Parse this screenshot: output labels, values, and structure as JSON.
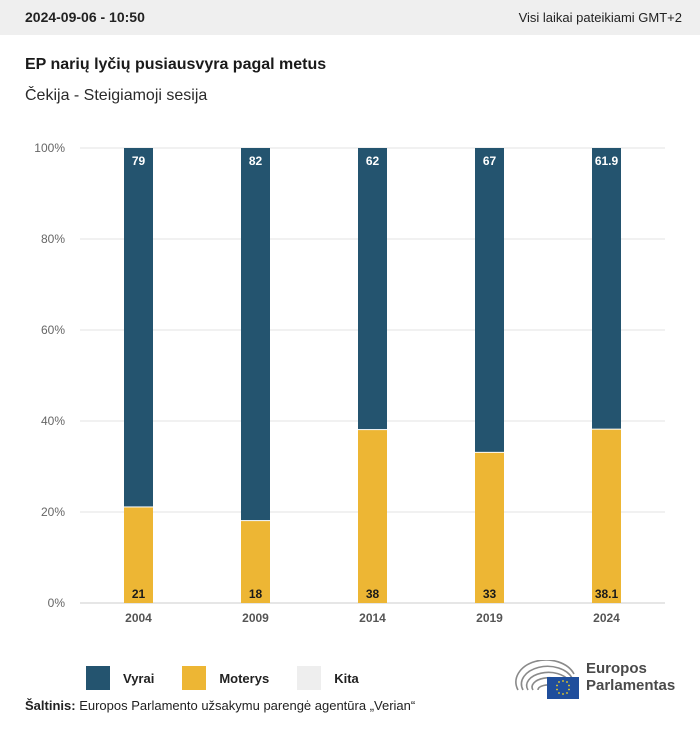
{
  "header": {
    "datetime": "2024-09-06 - 10:50",
    "timezone_note": "Visi laikai pateikiami GMT+2"
  },
  "title": "EP narių lyčių pusiausvyra pagal metus",
  "subtitle": "Čekija - Steigiamoji sesija",
  "colors": {
    "men": "#24546F",
    "women": "#EDB634",
    "other": "#EEEEEE",
    "grid": "#e3e3e3"
  },
  "chart_data": {
    "type": "bar",
    "stacked": true,
    "title": "EP narių lyčių pusiausvyra pagal metus",
    "subtitle": "Čekija - Steigiamoji sesija",
    "xlabel": "",
    "ylabel": "",
    "categories": [
      "2004",
      "2009",
      "2014",
      "2019",
      "2024"
    ],
    "series": [
      {
        "name": "Moterys",
        "values": [
          21,
          18,
          38,
          33,
          38.1
        ],
        "labels": [
          "21",
          "18",
          "38",
          "33",
          "38.1"
        ]
      },
      {
        "name": "Vyrai",
        "values": [
          79,
          82,
          62,
          67,
          61.9
        ],
        "labels": [
          "79",
          "82",
          "62",
          "67",
          "61.9"
        ]
      },
      {
        "name": "Kita",
        "values": [
          0,
          0,
          0,
          0,
          0
        ]
      }
    ],
    "ylim": [
      0,
      100
    ],
    "yticks": [
      "0%",
      "20%",
      "40%",
      "60%",
      "80%",
      "100%"
    ],
    "ytick_values": [
      0,
      20,
      40,
      60,
      80,
      100
    ],
    "grid": true,
    "legend_position": "bottom-left"
  },
  "legend": {
    "items": [
      {
        "label": "Vyrai"
      },
      {
        "label": "Moterys"
      },
      {
        "label": "Kita"
      }
    ]
  },
  "source": {
    "prefix": "Šaltinis:",
    "text": " Europos Parlamento užsakymu parengė agentūra „Verian“"
  },
  "logo": {
    "line1": "Europos",
    "line2": "Parlamentas"
  }
}
